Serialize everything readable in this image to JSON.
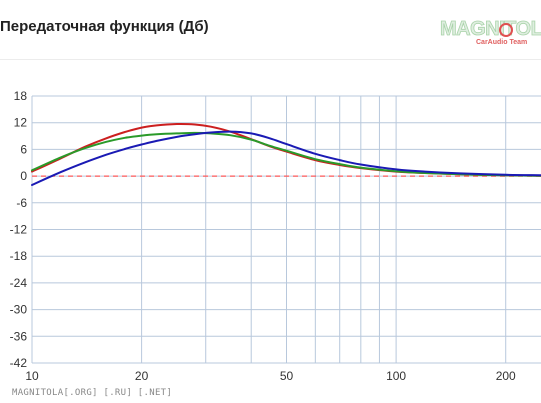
{
  "header": {
    "title": "Передаточная функция (Дб)"
  },
  "logo": {
    "word": "MAGNITOLA",
    "sub": "CarAudio Team"
  },
  "footer": {
    "text": "MAGNITOLA[.ORG] [.RU] [.NET]"
  },
  "colors": {
    "grid": "#b8c8dc",
    "axis_text": "#333333",
    "reference": "#ff5a5a",
    "series_red": "#cc1f1f",
    "series_green": "#2a9a2a",
    "series_blue": "#1a1ab4"
  },
  "chart_data": {
    "type": "line",
    "title": "Передаточная функция (Дб)",
    "xlabel": "",
    "ylabel": "",
    "x_scale": "log",
    "xlim": [
      10,
      250
    ],
    "ylim": [
      -42,
      18
    ],
    "x_ticks": [
      10,
      20,
      50,
      100,
      200
    ],
    "x_minor_gridlines": [
      10,
      20,
      30,
      40,
      50,
      60,
      70,
      80,
      90,
      100,
      200
    ],
    "y_ticks": [
      18,
      12,
      6,
      0,
      -6,
      -12,
      -18,
      -24,
      -30,
      -36,
      -42
    ],
    "grid": true,
    "reference_line": {
      "y": 0,
      "style": "dashed"
    },
    "series": [
      {
        "color": "#cc1f1f",
        "x": [
          10,
          12,
          14,
          16,
          18,
          20,
          22,
          25,
          28,
          31,
          35,
          40,
          45,
          50,
          60,
          70,
          80,
          100,
          120,
          150,
          200,
          250
        ],
        "y": [
          1.0,
          4.0,
          6.6,
          8.5,
          9.9,
          10.9,
          11.4,
          11.7,
          11.6,
          11.1,
          10.0,
          8.3,
          6.7,
          5.5,
          3.6,
          2.5,
          1.8,
          1.0,
          0.7,
          0.4,
          0.2,
          0.1
        ]
      },
      {
        "color": "#2a9a2a",
        "x": [
          10,
          12,
          14,
          16,
          18,
          20,
          22,
          25,
          28,
          31,
          35,
          40,
          45,
          50,
          60,
          70,
          80,
          100,
          120,
          150,
          200,
          250
        ],
        "y": [
          1.3,
          4.2,
          6.3,
          7.7,
          8.6,
          9.1,
          9.4,
          9.6,
          9.7,
          9.6,
          9.2,
          8.2,
          6.8,
          5.7,
          3.8,
          2.7,
          1.9,
          1.1,
          0.7,
          0.4,
          0.2,
          0.1
        ]
      },
      {
        "color": "#1a1ab4",
        "x": [
          10,
          12,
          14,
          16,
          18,
          20,
          22,
          25,
          28,
          31,
          35,
          40,
          45,
          50,
          60,
          70,
          80,
          100,
          120,
          150,
          200,
          250
        ],
        "y": [
          -2.0,
          0.9,
          3.1,
          4.8,
          6.1,
          7.1,
          7.9,
          8.8,
          9.4,
          9.8,
          10.0,
          9.6,
          8.5,
          7.2,
          5.0,
          3.6,
          2.6,
          1.5,
          1.0,
          0.6,
          0.3,
          0.2
        ]
      }
    ]
  }
}
